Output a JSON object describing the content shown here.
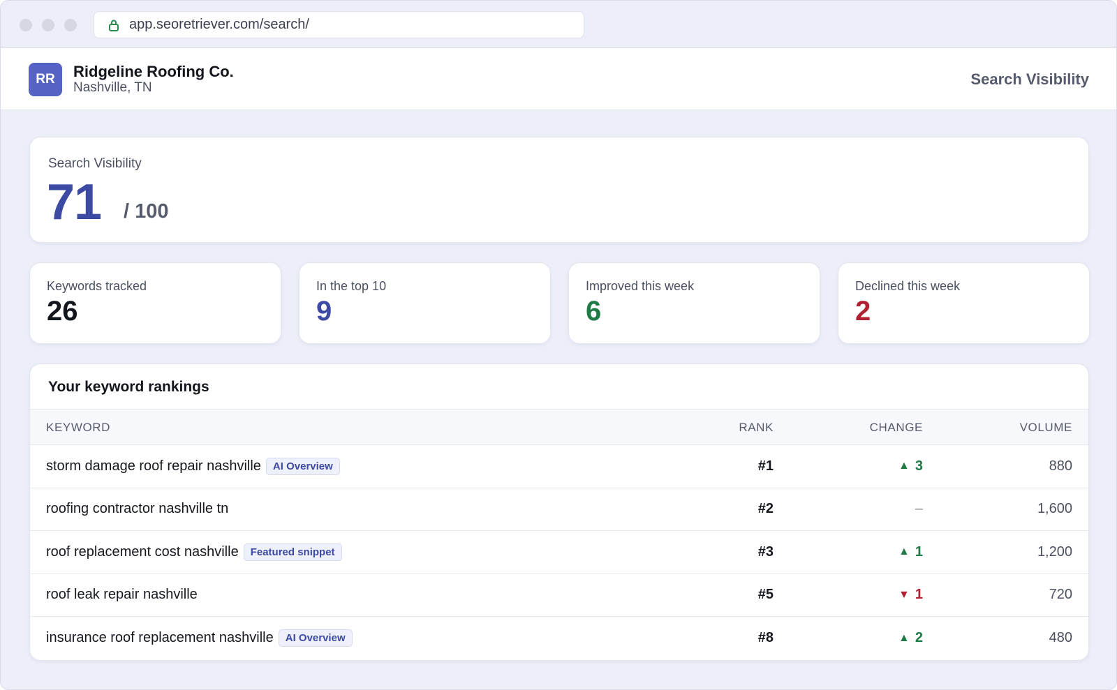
{
  "browser": {
    "url": "app.seoretriever.com/search/"
  },
  "header": {
    "avatar_initials": "RR",
    "business_name": "Ridgeline Roofing Co.",
    "business_location": "Nashville, TN",
    "page_title": "Search Visibility"
  },
  "score": {
    "label": "Search Visibility",
    "value": "71",
    "max": "/ 100"
  },
  "stats": [
    {
      "label": "Keywords tracked",
      "value": "26",
      "color": "#14161d"
    },
    {
      "label": "In the top 10",
      "value": "9",
      "color": "#3d4aa3"
    },
    {
      "label": "Improved this week",
      "value": "6",
      "color": "#1f7a45"
    },
    {
      "label": "Declined this week",
      "value": "2",
      "color": "#b02232"
    }
  ],
  "rankings": {
    "title": "Your keyword rankings",
    "columns": {
      "keyword": "KEYWORD",
      "rank": "RANK",
      "change": "CHANGE",
      "volume": "VOLUME"
    },
    "rows": [
      {
        "keyword": "storm damage roof repair nashville",
        "badge": "AI Overview",
        "rank": "#1",
        "direction": "up",
        "arrow": "▲",
        "change": "3",
        "volume": "880"
      },
      {
        "keyword": "roofing contractor nashville tn",
        "badge": "",
        "rank": "#2",
        "direction": "flat",
        "arrow": "",
        "change": "–",
        "volume": "1,600"
      },
      {
        "keyword": "roof replacement cost nashville",
        "badge": "Featured snippet",
        "rank": "#3",
        "direction": "up",
        "arrow": "▲",
        "change": "1",
        "volume": "1,200"
      },
      {
        "keyword": "roof leak repair nashville",
        "badge": "",
        "rank": "#5",
        "direction": "down",
        "arrow": "▼",
        "change": "1",
        "volume": "720"
      },
      {
        "keyword": "insurance roof replacement nashville",
        "badge": "AI Overview",
        "rank": "#8",
        "direction": "up",
        "arrow": "▲",
        "change": "2",
        "volume": "480"
      }
    ]
  },
  "colors": {
    "accent": "#3d4aa3",
    "avatar": "#5763c4",
    "positive": "#1f7a45",
    "negative": "#b02232",
    "background": "#eceef8"
  },
  "icons": {
    "url_secure": "lock-icon",
    "up": "triangle-up-icon",
    "down": "triangle-down-icon"
  }
}
